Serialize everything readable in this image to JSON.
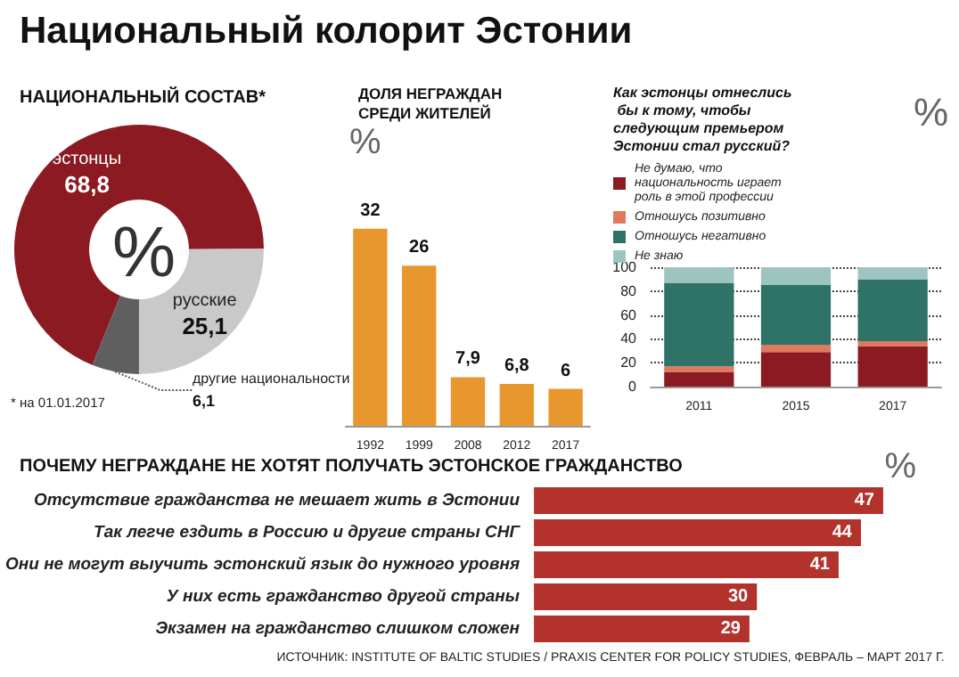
{
  "chart_data": [
    {
      "type": "donut",
      "title": "Национальный колорит Эстонии",
      "subtitle": "НАЦИОНАЛЬНЫЙ СОСТАВ*",
      "categories": [
        "эстонцы",
        "русские",
        "другие национальности"
      ],
      "values": [
        68.8,
        25.1,
        6.1
      ],
      "value_labels": [
        "68,8",
        "25,1",
        "6,1"
      ],
      "colors": [
        "#8b1a22",
        "#c9c9c9",
        "#5f5f5f"
      ],
      "annotations": [
        "%",
        "* на 01.01.2017"
      ]
    },
    {
      "type": "bar",
      "title": "ДОЛЯ НЕГРАЖДАН СРЕДИ ЖИТЕЛЕЙ",
      "ylabel": "%",
      "categories": [
        "1992",
        "1999",
        "2008",
        "2012",
        "2017"
      ],
      "values": [
        32,
        26,
        7.9,
        6.8,
        6
      ],
      "value_labels": [
        "32",
        "26",
        "7,9",
        "6,8",
        "6"
      ],
      "color": "#e8972e"
    },
    {
      "type": "bar",
      "title": "Как эстонцы отнеслись бы к тому, чтобы следующим премьером Эстонии стал русский?",
      "ylabel": "%",
      "categories": [
        "2011",
        "2015",
        "2017"
      ],
      "stacked": true,
      "ylim": [
        0,
        100
      ],
      "yticks": [
        0,
        20,
        40,
        60,
        80,
        100
      ],
      "grid": "y",
      "legend": "top",
      "series": [
        {
          "name": "Не думаю, что национальность играет роль в этой профессии",
          "color": "#8b1a22",
          "values": [
            12,
            29,
            34
          ]
        },
        {
          "name": "Отношусь позитивно",
          "color": "#e07a5f",
          "values": [
            5,
            6,
            4
          ]
        },
        {
          "name": "Отношусь негативно",
          "color": "#2e7268",
          "values": [
            70,
            50,
            52
          ]
        },
        {
          "name": "Не знаю",
          "color": "#9ec4bf",
          "values": [
            13,
            15,
            10
          ]
        }
      ]
    },
    {
      "type": "bar",
      "orientation": "horizontal",
      "title": "ПОЧЕМУ НЕГРАЖДАНЕ НЕ ХОТЯТ ПОЛУЧАТЬ ЭСТОНСКОЕ ГРАЖДАНСТВО",
      "xlabel": "%",
      "categories": [
        "Отсутствие гражданства не мешает жить в Эстонии",
        "Так легче ездить в Россию и другие страны СНГ",
        "Они не могут выучить эстонский язык до нужного уровня",
        "У них есть гражданство другой страны",
        "Экзамен на гражданство слишком сложен"
      ],
      "values": [
        47,
        44,
        41,
        30,
        29
      ],
      "data_labels": true,
      "color": "#b3322c",
      "annotations": [
        "ИСТОЧНИК: INSTITUTE OF BALTIC STUDIES / PRAXIS CENTER FOR POLICY STUDIES, ФЕВРАЛЬ – МАРТ 2017 Г."
      ]
    }
  ]
}
